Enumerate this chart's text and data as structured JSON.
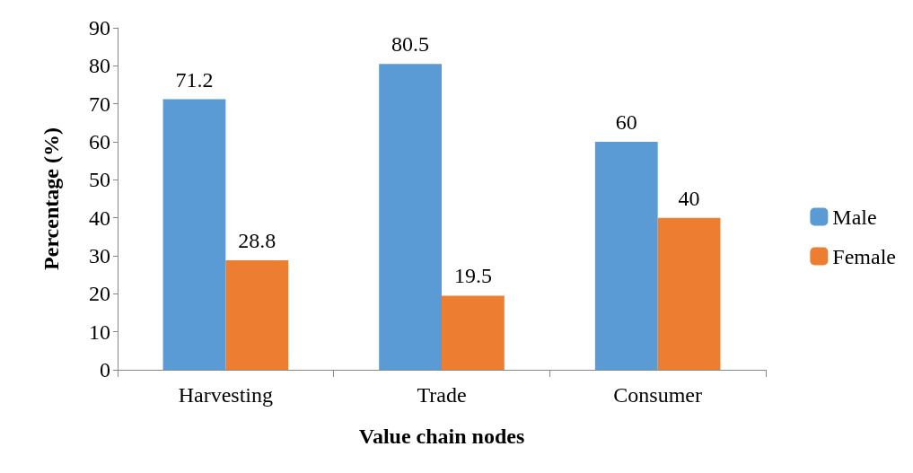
{
  "chart_data": {
    "type": "bar",
    "xlabel": "Value chain nodes",
    "ylabel": "Percentage (%)",
    "categories": [
      "Harvesting",
      "Trade",
      "Consumer"
    ],
    "series": [
      {
        "name": "Male",
        "color": "#5b9bd5",
        "values": [
          71.2,
          80.5,
          60
        ]
      },
      {
        "name": "Female",
        "color": "#ed7d31",
        "values": [
          28.8,
          19.5,
          40
        ]
      }
    ],
    "ylim": [
      0,
      90
    ],
    "yticks": [
      0,
      10,
      20,
      30,
      40,
      50,
      60,
      70,
      80,
      90
    ],
    "grid": false,
    "legend": "right",
    "data_labels": true
  }
}
